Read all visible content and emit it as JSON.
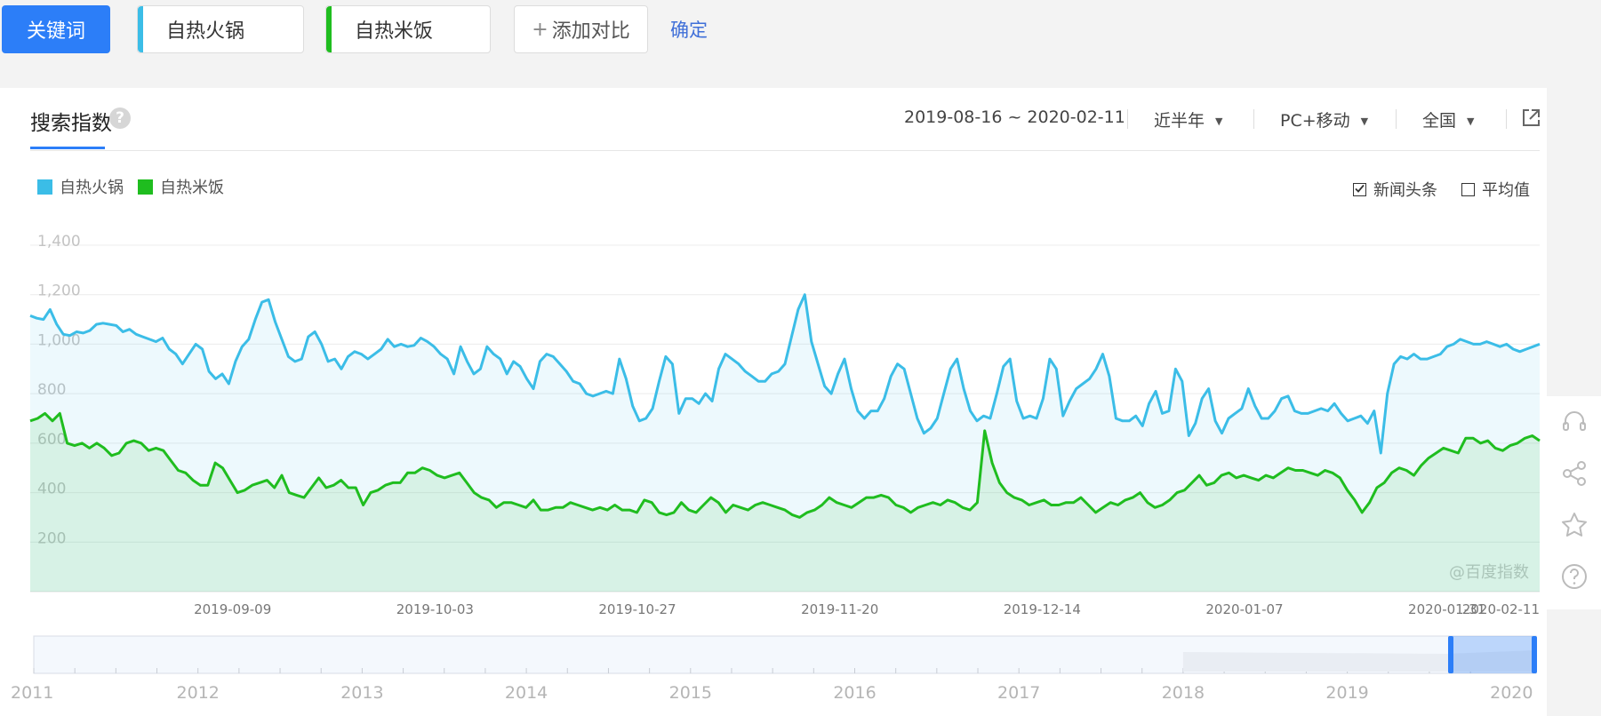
{
  "toolbar": {
    "keyword_button": "关键词",
    "kw1": {
      "label": "自热火锅",
      "color": "#3bbde7"
    },
    "kw2": {
      "label": "自热米饭",
      "color": "#1fbd1f"
    },
    "add_label": "添加对比",
    "confirm_label": "确定"
  },
  "panel": {
    "title": "搜索指数",
    "help_glyph": "?",
    "date_range": "2019-08-16 ~ 2020-02-11",
    "period": "近半年",
    "device": "PC+移动",
    "region": "全国",
    "checkbox_news": {
      "label": "新闻头条",
      "checked": true
    },
    "checkbox_avg": {
      "label": "平均值",
      "checked": false
    },
    "watermark": "@百度指数"
  },
  "chart_data": {
    "type": "area",
    "x_ticks": [
      "2019-09-09",
      "2019-10-03",
      "2019-10-27",
      "2019-11-20",
      "2019-12-14",
      "2020-01-07",
      "2020-01-31",
      "2020-02-11"
    ],
    "x_range": [
      "2019-08-16",
      "2020-02-11"
    ],
    "ylim": [
      0,
      1400
    ],
    "y_ticks": [
      "1,400",
      "1,200",
      "1,000",
      "800",
      "600",
      "400",
      "200"
    ],
    "y_tick_values": [
      1400,
      1200,
      1000,
      800,
      600,
      400,
      200
    ],
    "grid": true,
    "legend": "top-left",
    "series": [
      {
        "name": "自热火锅",
        "color": "#3bbde7",
        "values": [
          1115,
          1105,
          1100,
          1140,
          1080,
          1040,
          1035,
          1050,
          1045,
          1055,
          1080,
          1085,
          1080,
          1075,
          1050,
          1060,
          1040,
          1030,
          1020,
          1010,
          1025,
          980,
          960,
          920,
          960,
          1000,
          980,
          890,
          860,
          880,
          840,
          930,
          990,
          1020,
          1100,
          1170,
          1180,
          1090,
          1020,
          950,
          930,
          940,
          1030,
          1050,
          1000,
          930,
          940,
          900,
          950,
          970,
          960,
          940,
          960,
          980,
          1020,
          990,
          1000,
          990,
          995,
          1025,
          1010,
          990,
          960,
          940,
          880,
          990,
          930,
          880,
          900,
          990,
          960,
          940,
          880,
          930,
          910,
          860,
          820,
          930,
          960,
          950,
          920,
          890,
          850,
          840,
          800,
          790,
          800,
          810,
          800,
          940,
          860,
          750,
          690,
          700,
          740,
          850,
          950,
          920,
          720,
          780,
          780,
          760,
          800,
          770,
          900,
          960,
          940,
          920,
          890,
          870,
          850,
          850,
          880,
          890,
          920,
          1030,
          1140,
          1200,
          1010,
          920,
          830,
          800,
          880,
          940,
          820,
          730,
          700,
          730,
          730,
          780,
          870,
          920,
          900,
          800,
          700,
          640,
          660,
          700,
          800,
          900,
          940,
          820,
          730,
          690,
          710,
          700,
          800,
          910,
          940,
          770,
          700,
          710,
          700,
          780,
          940,
          900,
          710,
          770,
          820,
          840,
          860,
          900,
          960,
          870,
          700,
          690,
          690,
          710,
          670,
          760,
          810,
          720,
          730,
          900,
          850,
          630,
          680,
          780,
          820,
          690,
          640,
          700,
          720,
          740,
          820,
          750,
          700,
          700,
          730,
          780,
          790,
          730,
          720,
          720,
          730,
          740,
          730,
          760,
          720,
          690,
          700,
          710,
          680,
          730,
          560,
          800,
          920,
          950,
          940,
          960,
          940,
          940,
          950,
          960,
          990,
          1000,
          1020,
          1010,
          1000,
          1000,
          1010,
          1000,
          990,
          1000,
          980,
          970,
          980,
          990,
          1000
        ]
      },
      {
        "name": "自热米饭",
        "color": "#1fbd1f",
        "values": [
          690,
          700,
          720,
          690,
          720,
          600,
          590,
          600,
          580,
          600,
          580,
          550,
          560,
          600,
          610,
          600,
          570,
          580,
          570,
          530,
          490,
          480,
          450,
          430,
          430,
          520,
          500,
          450,
          400,
          410,
          430,
          440,
          450,
          420,
          470,
          400,
          390,
          380,
          420,
          460,
          420,
          430,
          450,
          420,
          420,
          350,
          400,
          410,
          430,
          440,
          440,
          480,
          480,
          500,
          490,
          470,
          460,
          470,
          480,
          440,
          400,
          380,
          370,
          340,
          360,
          360,
          350,
          340,
          370,
          330,
          330,
          340,
          340,
          360,
          350,
          340,
          330,
          340,
          330,
          350,
          330,
          330,
          320,
          370,
          360,
          320,
          310,
          320,
          360,
          330,
          320,
          350,
          380,
          360,
          320,
          350,
          340,
          330,
          350,
          360,
          350,
          340,
          330,
          310,
          300,
          320,
          330,
          350,
          380,
          360,
          350,
          340,
          360,
          380,
          380,
          390,
          380,
          350,
          340,
          320,
          340,
          350,
          360,
          350,
          370,
          360,
          340,
          330,
          360,
          650,
          520,
          440,
          400,
          380,
          370,
          350,
          360,
          370,
          350,
          350,
          360,
          360,
          380,
          350,
          320,
          340,
          360,
          350,
          370,
          380,
          400,
          360,
          340,
          350,
          370,
          400,
          410,
          440,
          470,
          430,
          440,
          470,
          480,
          460,
          470,
          460,
          450,
          470,
          460,
          480,
          500,
          490,
          490,
          480,
          470,
          490,
          480,
          460,
          410,
          370,
          320,
          360,
          420,
          440,
          480,
          500,
          490,
          470,
          510,
          540,
          560,
          580,
          570,
          560,
          620,
          620,
          600,
          610,
          580,
          570,
          590,
          600,
          620,
          630,
          610
        ]
      }
    ],
    "navigator": {
      "years": [
        "2011",
        "2012",
        "2013",
        "2014",
        "2015",
        "2016",
        "2017",
        "2018",
        "2019",
        "2020"
      ]
    }
  }
}
